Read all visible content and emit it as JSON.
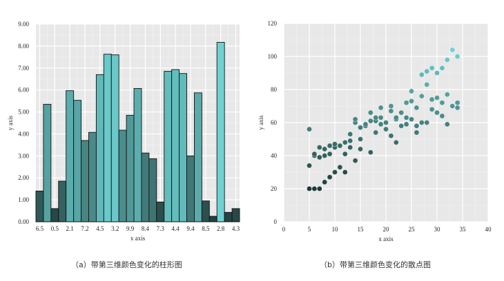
{
  "captions": {
    "a": "（a）带第三维颜色变化的柱形图",
    "b": "（b）带第三维颜色变化的散点图"
  },
  "colors": {
    "panel_bg": "#e8e8e8",
    "grid": "#ffffff",
    "color_low": "#1f3a38",
    "color_high": "#6fd2d2"
  },
  "chart_data": [
    {
      "type": "bar",
      "title": "",
      "xlabel": "x axis",
      "ylabel": "y axis",
      "ylim": [
        0,
        9
      ],
      "yticks": [
        "0.00",
        "1.00",
        "2.00",
        "3.00",
        "4.00",
        "5.00",
        "6.00",
        "7.00",
        "8.00",
        "9.00"
      ],
      "xtick_labels": [
        "6.5",
        "0.5",
        "2.1",
        "7.2",
        "4.5",
        "3.2",
        "9.9",
        "8.4",
        "7.3",
        "4.4",
        "9.4",
        "8.5",
        "2.8",
        "4.3"
      ],
      "grid": true,
      "color_encodes": "bar height (third dimension)",
      "categories": [
        1,
        2,
        3,
        4,
        5,
        6,
        7,
        8,
        9,
        10,
        11,
        12,
        13,
        14,
        15,
        16,
        17,
        18,
        19,
        20,
        21,
        22,
        23,
        24,
        25,
        26,
        27
      ],
      "values": [
        1.4,
        5.35,
        0.6,
        1.85,
        5.97,
        5.53,
        3.7,
        4.07,
        6.7,
        7.63,
        7.6,
        4.17,
        4.85,
        6.07,
        3.13,
        2.87,
        0.9,
        6.85,
        6.93,
        6.75,
        3.0,
        5.87,
        0.95,
        0.25,
        8.17,
        0.43,
        0.6
      ]
    },
    {
      "type": "scatter",
      "title": "",
      "xlabel": "x axis",
      "ylabel": "y axis",
      "xlim": [
        0,
        40
      ],
      "ylim": [
        0,
        120
      ],
      "xticks": [
        "0",
        "5",
        "10",
        "15",
        "20",
        "25",
        "30",
        "35",
        "40"
      ],
      "yticks": [
        "0",
        "20",
        "40",
        "60",
        "80",
        "100",
        "120"
      ],
      "grid": true,
      "color_encodes": "y value (third dimension)",
      "points": [
        [
          5,
          20
        ],
        [
          5,
          34
        ],
        [
          5,
          56
        ],
        [
          6,
          20
        ],
        [
          6,
          40
        ],
        [
          6,
          41
        ],
        [
          7,
          20
        ],
        [
          7,
          39
        ],
        [
          7,
          45
        ],
        [
          8,
          24
        ],
        [
          8,
          40
        ],
        [
          8,
          44
        ],
        [
          9,
          27
        ],
        [
          9,
          41
        ],
        [
          9,
          46
        ],
        [
          10,
          30
        ],
        [
          10,
          45
        ],
        [
          10,
          47
        ],
        [
          11,
          33
        ],
        [
          11,
          46
        ],
        [
          12,
          30
        ],
        [
          12,
          41
        ],
        [
          12,
          48
        ],
        [
          13,
          45
        ],
        [
          13,
          49
        ],
        [
          13,
          53
        ],
        [
          14,
          37
        ],
        [
          14,
          60
        ],
        [
          14,
          62
        ],
        [
          15,
          44
        ],
        [
          15,
          50
        ],
        [
          15,
          57
        ],
        [
          16,
          58
        ],
        [
          16,
          59
        ],
        [
          17,
          42
        ],
        [
          17,
          61
        ],
        [
          17,
          66
        ],
        [
          18,
          54
        ],
        [
          18,
          61
        ],
        [
          18,
          63
        ],
        [
          19,
          59
        ],
        [
          19,
          63
        ],
        [
          19,
          69
        ],
        [
          20,
          56
        ],
        [
          20,
          60
        ],
        [
          21,
          52
        ],
        [
          21,
          67
        ],
        [
          21,
          70
        ],
        [
          22,
          48
        ],
        [
          22,
          62
        ],
        [
          22,
          63
        ],
        [
          23,
          58
        ],
        [
          23,
          66
        ],
        [
          24,
          59
        ],
        [
          24,
          63
        ],
        [
          24,
          72
        ],
        [
          25,
          62
        ],
        [
          25,
          73
        ],
        [
          25,
          79
        ],
        [
          26,
          54
        ],
        [
          26,
          58
        ],
        [
          26,
          69
        ],
        [
          27,
          60
        ],
        [
          27,
          76
        ],
        [
          27,
          89
        ],
        [
          28,
          60
        ],
        [
          28,
          83
        ],
        [
          28,
          91
        ],
        [
          29,
          68
        ],
        [
          29,
          74
        ],
        [
          29,
          93
        ],
        [
          30,
          66
        ],
        [
          30,
          75
        ],
        [
          30,
          90
        ],
        [
          31,
          64
        ],
        [
          31,
          72
        ],
        [
          31,
          93
        ],
        [
          32,
          59
        ],
        [
          32,
          77
        ],
        [
          32,
          98
        ],
        [
          33,
          70
        ],
        [
          33,
          104
        ],
        [
          34,
          69
        ],
        [
          34,
          72
        ],
        [
          34,
          100
        ]
      ]
    }
  ]
}
